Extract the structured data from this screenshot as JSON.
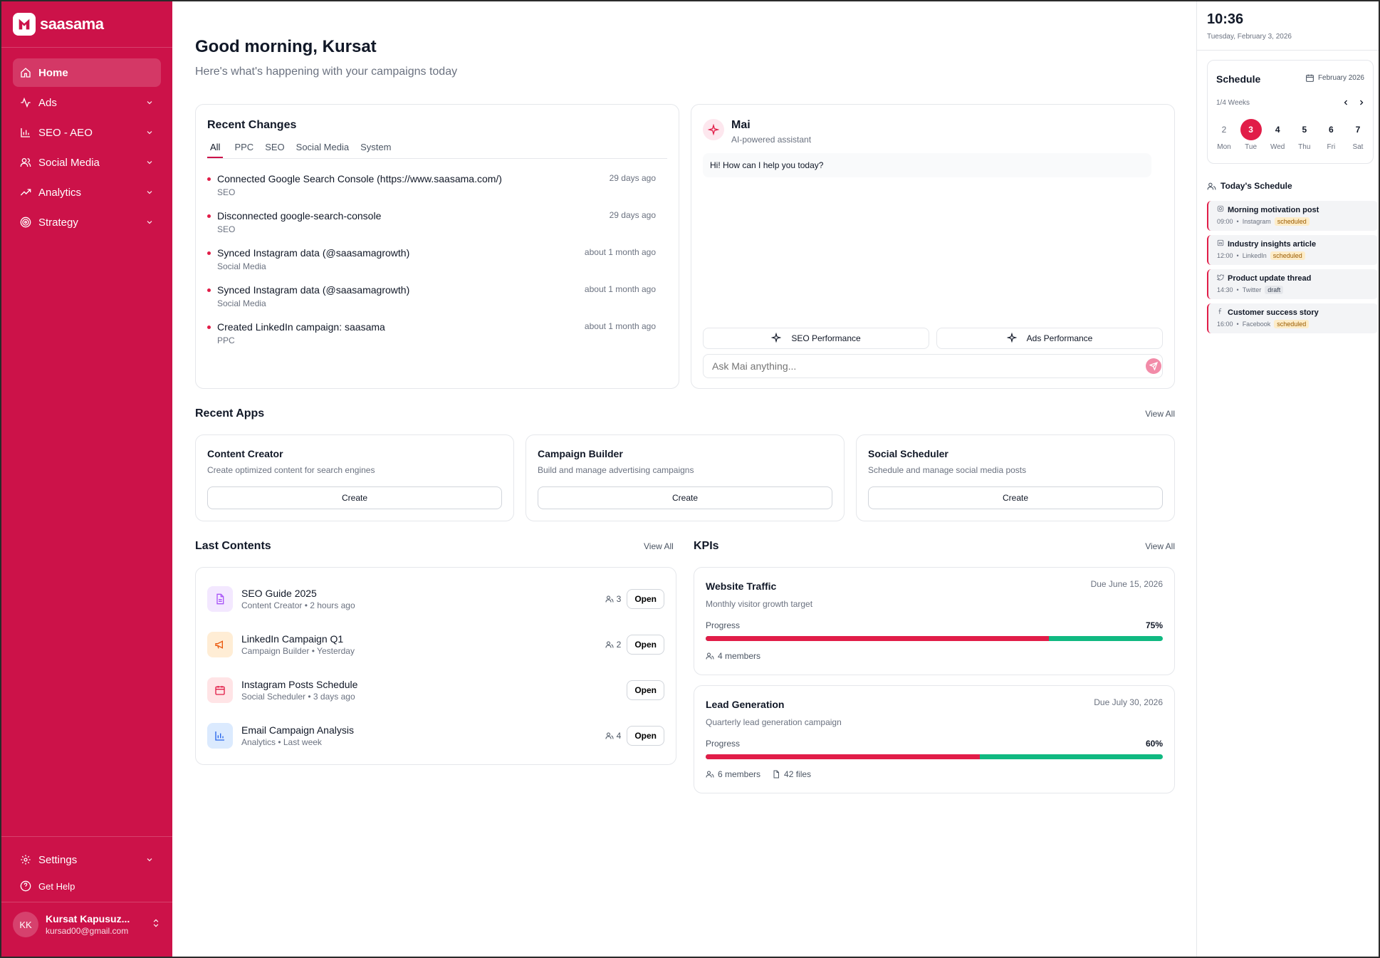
{
  "brand": {
    "name": "saasama",
    "accent": "#cc1249"
  },
  "nav": {
    "items": [
      {
        "label": "Home",
        "icon": "home-icon",
        "active": true
      },
      {
        "label": "Ads",
        "icon": "activity-icon"
      },
      {
        "label": "SEO - AEO",
        "icon": "bar-chart-icon"
      },
      {
        "label": "Social Media",
        "icon": "users-icon"
      },
      {
        "label": "Analytics",
        "icon": "trending-up-icon"
      },
      {
        "label": "Strategy",
        "icon": "target-icon"
      }
    ],
    "settings": "Settings",
    "help": "Get Help"
  },
  "user": {
    "initials": "KK",
    "name": "Kursat Kapusuz...",
    "email": "kursad00@gmail.com"
  },
  "header": {
    "greeting": "Good morning, Kursat",
    "subtitle": "Here's what's happening with your campaigns today"
  },
  "recent_changes": {
    "title": "Recent Changes",
    "tabs": [
      "All",
      "PPC",
      "SEO",
      "Social Media",
      "System"
    ],
    "items": [
      {
        "title": "Connected Google Search Console (https://www.saasama.com/)",
        "category": "SEO",
        "ago": "29 days ago"
      },
      {
        "title": "Disconnected google-search-console",
        "category": "SEO",
        "ago": "29 days ago"
      },
      {
        "title": "Synced Instagram data (@saasamagrowth)",
        "category": "Social Media",
        "ago": "about 1 month ago"
      },
      {
        "title": "Synced Instagram data (@saasamagrowth)",
        "category": "Social Media",
        "ago": "about 1 month ago"
      },
      {
        "title": "Created LinkedIn campaign: saasama",
        "category": "PPC",
        "ago": "about 1 month ago"
      }
    ]
  },
  "assistant": {
    "name": "Mai",
    "subtitle": "AI-powered assistant",
    "message": "Hi! How can I help you today?",
    "quick_actions": [
      "SEO Performance",
      "Ads Performance"
    ],
    "placeholder": "Ask Mai anything..."
  },
  "recent_apps": {
    "title": "Recent Apps",
    "view_all": "View All",
    "items": [
      {
        "title": "Content Creator",
        "desc": "Create optimized content for search engines",
        "button": "Create"
      },
      {
        "title": "Campaign Builder",
        "desc": "Build and manage advertising campaigns",
        "button": "Create"
      },
      {
        "title": "Social Scheduler",
        "desc": "Schedule and manage social media posts",
        "button": "Create"
      }
    ]
  },
  "last_contents": {
    "title": "Last Contents",
    "view_all": "View All",
    "items": [
      {
        "title": "SEO Guide 2025",
        "sub": "Content Creator • 2 hours ago",
        "members": "3",
        "button": "Open",
        "icon": "document-icon",
        "color": "#a855f7",
        "bg": "#f3e8ff"
      },
      {
        "title": "LinkedIn Campaign Q1",
        "sub": "Campaign Builder • Yesterday",
        "members": "2",
        "button": "Open",
        "icon": "megaphone-icon",
        "color": "#ea580c",
        "bg": "#ffedd5"
      },
      {
        "title": "Instagram Posts Schedule",
        "sub": "Social Scheduler • 3 days ago",
        "members": "",
        "button": "Open",
        "icon": "calendar-icon",
        "color": "#e11d48",
        "bg": "#ffe4e6"
      },
      {
        "title": "Email Campaign Analysis",
        "sub": "Analytics • Last week",
        "members": "4",
        "button": "Open",
        "icon": "bar-chart-icon",
        "color": "#2563eb",
        "bg": "#dbeafe"
      }
    ]
  },
  "kpis": {
    "title": "KPIs",
    "view_all": "View All",
    "items": [
      {
        "title": "Website Traffic",
        "due": "Due June 15, 2026",
        "desc": "Monthly visitor growth target",
        "progress_label": "Progress",
        "progress": 75,
        "progress_text": "75%",
        "members": "4 members",
        "files": ""
      },
      {
        "title": "Lead Generation",
        "due": "Due July 30, 2026",
        "desc": "Quarterly lead generation campaign",
        "progress_label": "Progress",
        "progress": 60,
        "progress_text": "60%",
        "members": "6 members",
        "files": "42 files"
      }
    ]
  },
  "right_panel": {
    "time": "10:36",
    "date": "Tuesday, February 3, 2026",
    "schedule": {
      "title": "Schedule",
      "month": "February 2026",
      "weeks": "1/4 Weeks",
      "days": [
        {
          "n": "2",
          "w": "Mon"
        },
        {
          "n": "3",
          "w": "Tue",
          "selected": true
        },
        {
          "n": "4",
          "w": "Wed"
        },
        {
          "n": "5",
          "w": "Thu"
        },
        {
          "n": "6",
          "w": "Fri"
        },
        {
          "n": "7",
          "w": "Sat"
        }
      ]
    },
    "today": {
      "title": "Today's Schedule",
      "events": [
        {
          "title": "Morning motivation post",
          "time": "09:00",
          "platform": "Instagram",
          "status": "scheduled",
          "icon": "instagram-icon"
        },
        {
          "title": "Industry insights article",
          "time": "12:00",
          "platform": "LinkedIn",
          "status": "scheduled",
          "icon": "linkedin-icon"
        },
        {
          "title": "Product update thread",
          "time": "14:30",
          "platform": "Twitter",
          "status": "draft",
          "icon": "twitter-icon"
        },
        {
          "title": "Customer success story",
          "time": "16:00",
          "platform": "Facebook",
          "status": "scheduled",
          "icon": "facebook-icon"
        }
      ]
    }
  }
}
